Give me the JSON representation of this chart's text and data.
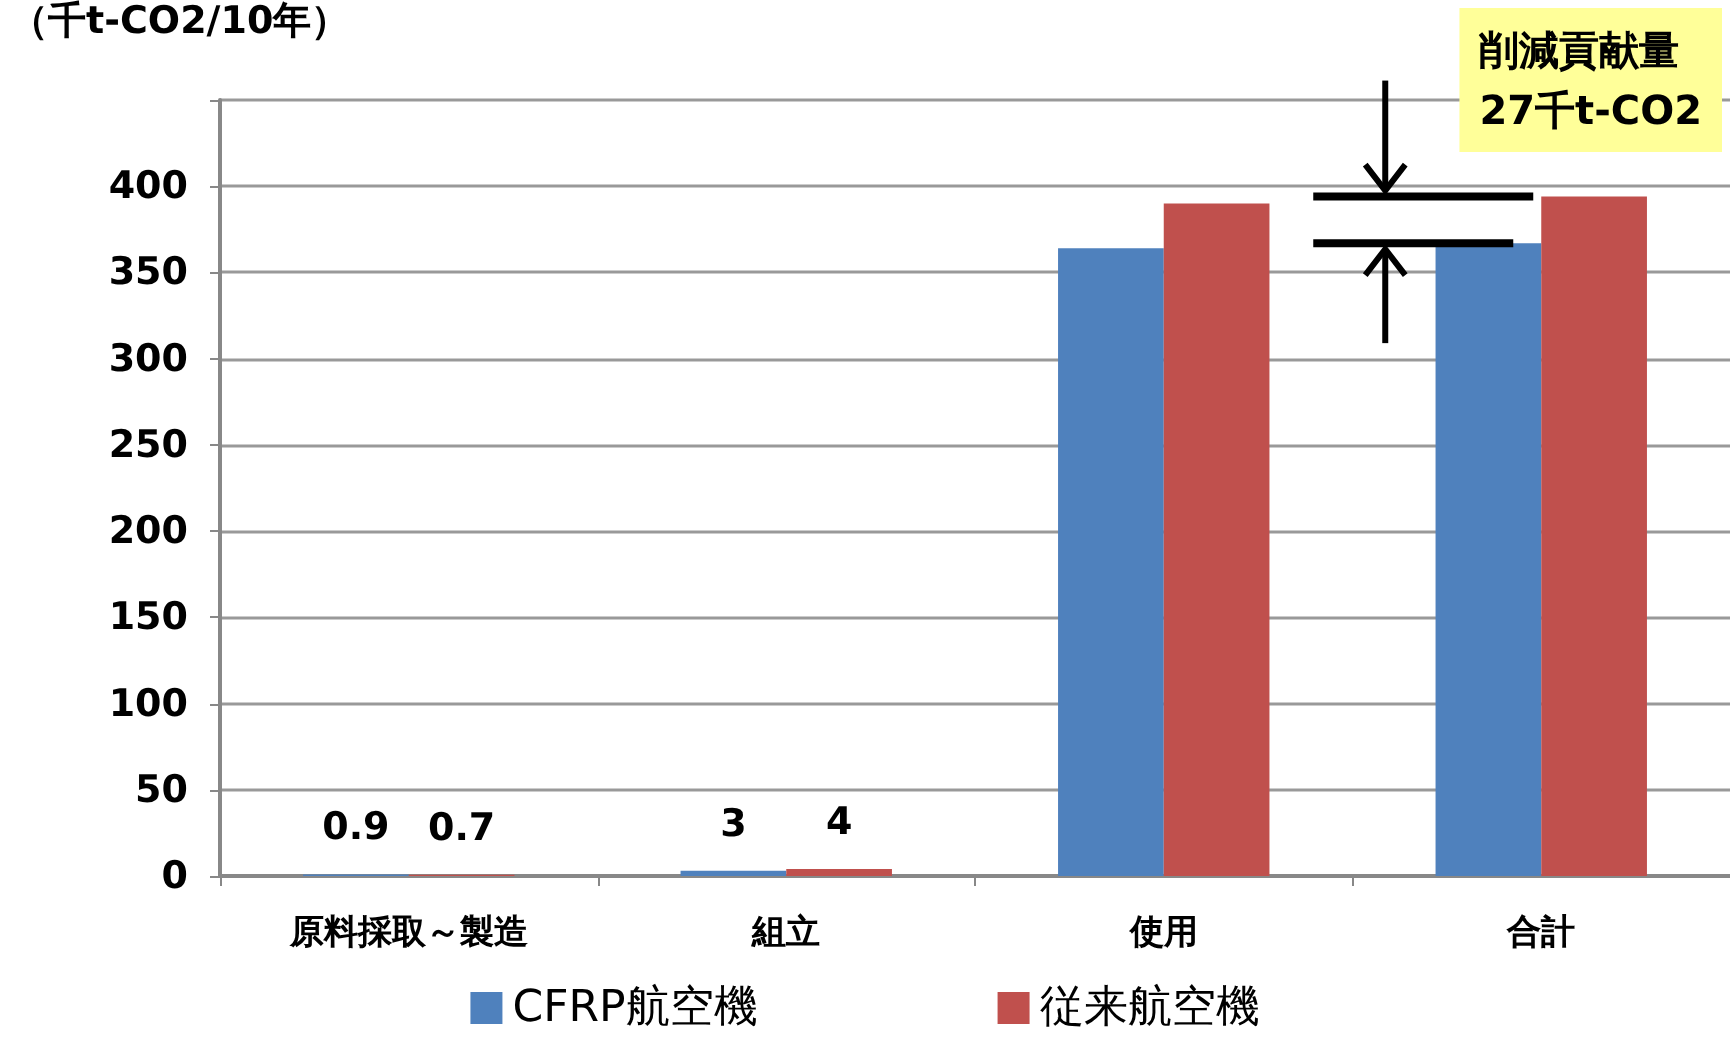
{
  "chart_data": {
    "type": "bar",
    "ylabel": "（千t-CO2/10年）",
    "categories": [
      "原料採取～製造",
      "組立",
      "使用",
      "合計"
    ],
    "series": [
      {
        "name": "CFRP航空機",
        "color": "#4f81bd",
        "values": [
          0.9,
          3,
          364,
          367
        ],
        "value_labels": [
          "0.9",
          "3",
          null,
          null
        ]
      },
      {
        "name": "従来航空機",
        "color": "#c0504d",
        "values": [
          0.7,
          4,
          390,
          394
        ],
        "value_labels": [
          "0.7",
          "4",
          null,
          null
        ]
      }
    ],
    "ylim": [
      0,
      450
    ],
    "yticks": [
      0,
      50,
      100,
      150,
      200,
      250,
      300,
      350,
      400,
      {
        "value": 450,
        "label": null
      }
    ],
    "grid": "y",
    "legend": "bottom",
    "annotations": [
      "削減貢献量\n27千t-CO2"
    ]
  }
}
